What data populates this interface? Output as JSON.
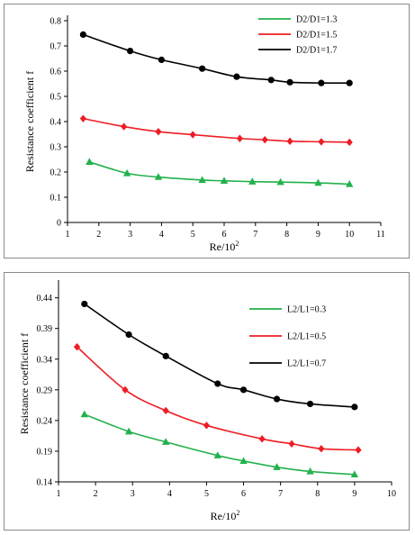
{
  "chart_data": [
    {
      "type": "line",
      "xlabel": "Re/10",
      "xlabel_sup": "2",
      "ylabel": "Resistance coefficient f",
      "xlim": [
        1,
        11
      ],
      "ylim": [
        0,
        0.8
      ],
      "xticks": [
        1,
        2,
        3,
        4,
        5,
        6,
        7,
        8,
        9,
        10,
        11
      ],
      "yticks": [
        0,
        0.1,
        0.2,
        0.3,
        0.4,
        0.5,
        0.6,
        0.7,
        0.8
      ],
      "xtick_labels": [
        "1",
        "2",
        "3",
        "4",
        "5",
        "6",
        "7",
        "8",
        "9",
        "10",
        "11"
      ],
      "ytick_labels": [
        "0",
        "0.1",
        "0.2",
        "0.3",
        "0.4",
        "0.5",
        "0.6",
        "0.7",
        "0.8"
      ],
      "grid": false,
      "legend_position": "top-right",
      "series": [
        {
          "name": "D2/D1=1.3",
          "color": "#22b14c",
          "marker": "triangle",
          "x": [
            1.7,
            2.9,
            3.9,
            5.3,
            6.0,
            6.9,
            7.8,
            9.0,
            10.0
          ],
          "y": [
            0.24,
            0.195,
            0.18,
            0.168,
            0.165,
            0.162,
            0.16,
            0.157,
            0.152
          ]
        },
        {
          "name": "D2/D1=1.5",
          "color": "#ee1c24",
          "marker": "diamond",
          "x": [
            1.5,
            2.8,
            3.9,
            5.0,
            6.5,
            7.3,
            8.1,
            9.1,
            10.0
          ],
          "y": [
            0.412,
            0.38,
            0.36,
            0.348,
            0.333,
            0.328,
            0.322,
            0.32,
            0.318
          ]
        },
        {
          "name": "D2/D1=1.7",
          "color": "#000000",
          "marker": "circle",
          "x": [
            1.5,
            3.0,
            4.0,
            5.3,
            6.4,
            7.5,
            8.1,
            9.1,
            10.0
          ],
          "y": [
            0.745,
            0.68,
            0.645,
            0.61,
            0.578,
            0.565,
            0.556,
            0.553,
            0.553
          ]
        }
      ]
    },
    {
      "type": "line",
      "xlabel": "Re/10",
      "xlabel_sup": "2",
      "ylabel": "Resistance coefficient f",
      "xlim": [
        1,
        10
      ],
      "ylim": [
        0.14,
        0.46
      ],
      "xticks": [
        1,
        2,
        3,
        4,
        5,
        6,
        7,
        8,
        9,
        10
      ],
      "yticks": [
        0.14,
        0.19,
        0.24,
        0.29,
        0.34,
        0.39,
        0.44
      ],
      "xtick_labels": [
        "1",
        "2",
        "3",
        "4",
        "5",
        "6",
        "7",
        "8",
        "9",
        "10"
      ],
      "ytick_labels": [
        "0.14",
        "0.19",
        "0.24",
        "0.29",
        "0.34",
        "0.39",
        "0.44"
      ],
      "grid": false,
      "legend_position": "top-right",
      "series": [
        {
          "name": "L2/L1=0.3",
          "color": "#22b14c",
          "marker": "triangle",
          "x": [
            1.7,
            2.9,
            3.9,
            5.3,
            6.0,
            6.9,
            7.8,
            9.0
          ],
          "y": [
            0.25,
            0.222,
            0.205,
            0.183,
            0.174,
            0.164,
            0.157,
            0.152
          ]
        },
        {
          "name": "L2/L1=0.5",
          "color": "#ee1c24",
          "marker": "diamond",
          "x": [
            1.5,
            2.8,
            3.9,
            5.0,
            6.5,
            7.3,
            8.1,
            9.1
          ],
          "y": [
            0.36,
            0.29,
            0.256,
            0.232,
            0.21,
            0.202,
            0.194,
            0.192
          ]
        },
        {
          "name": "L2/L1=0.7",
          "color": "#000000",
          "marker": "circle",
          "x": [
            1.7,
            2.9,
            3.9,
            5.3,
            6.0,
            6.9,
            7.8,
            9.0
          ],
          "y": [
            0.43,
            0.38,
            0.345,
            0.3,
            0.29,
            0.275,
            0.267,
            0.262
          ]
        }
      ]
    }
  ]
}
